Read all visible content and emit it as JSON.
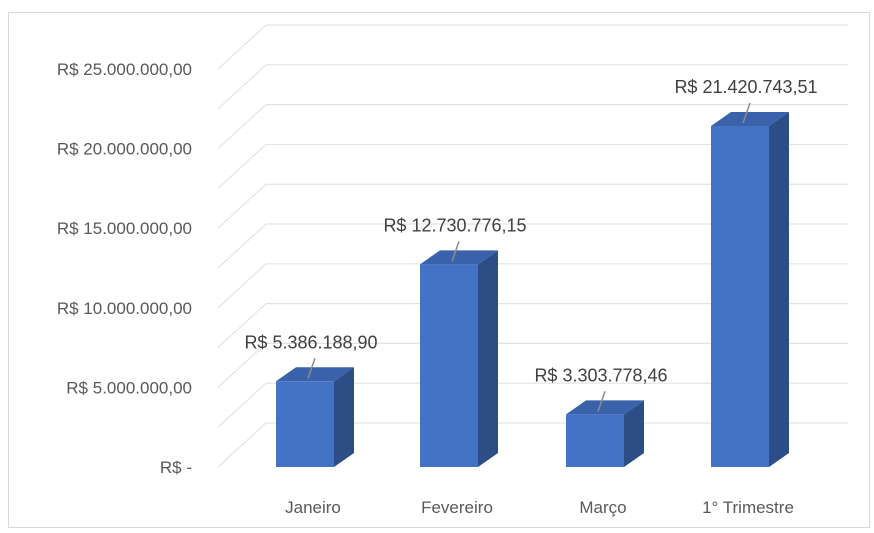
{
  "chart_data": {
    "type": "bar",
    "title": "",
    "xlabel": "",
    "ylabel": "",
    "categories": [
      "Janeiro",
      "Fevereiro",
      "Março",
      "1° Trimestre"
    ],
    "values": [
      5386188.9,
      12730776.15,
      3303778.46,
      21420743.51
    ],
    "value_labels": [
      "R$ 5.386.188,90",
      "R$ 12.730.776,15",
      "R$ 3.303.778,46",
      "R$ 21.420.743,51"
    ],
    "ylim": [
      0,
      25000000
    ],
    "yticks": [
      0,
      5000000,
      10000000,
      15000000,
      20000000,
      25000000
    ],
    "ytick_labels": [
      "R$ -",
      "R$ 5.000.000,00",
      "R$ 10.000.000,00",
      "R$ 15.000.000,00",
      "R$ 20.000.000,00",
      "R$ 25.000.000,00"
    ],
    "grid": true,
    "style": "3d-column",
    "colors": {
      "front": "#4472c4",
      "side": "#2c4d86",
      "top": "#3a62aa",
      "grid": "#e3e3e3"
    }
  }
}
